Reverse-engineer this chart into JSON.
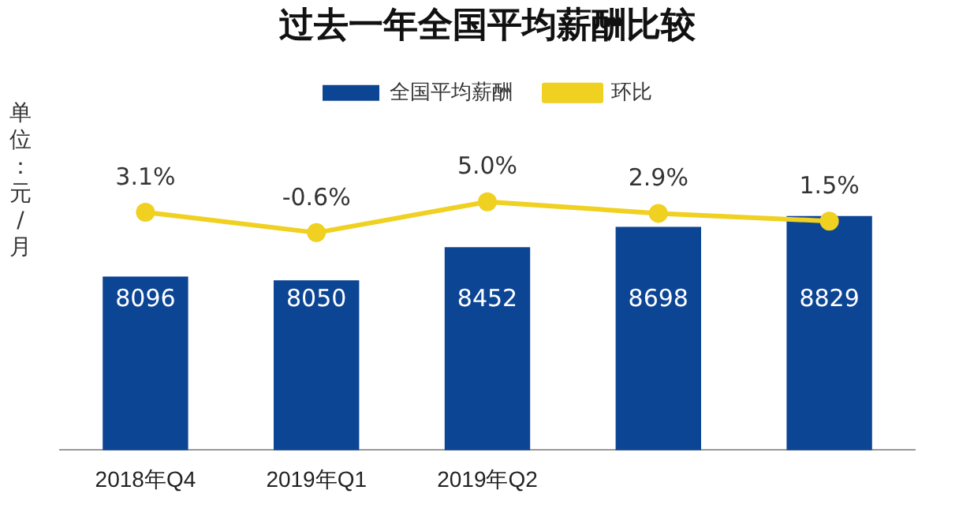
{
  "chart_data": {
    "type": "bar",
    "title": "过去一年全国平均薪酬比较",
    "ylabel": "单位：元/月",
    "categories": [
      "2018年Q4",
      "2019年Q1",
      "2019年Q2",
      null,
      null
    ],
    "series": [
      {
        "name": "全国平均薪酬",
        "color": "#0d4595",
        "values": [
          8096,
          8050,
          8452,
          8698,
          8829
        ]
      },
      {
        "name": "环比",
        "type": "line",
        "axis": "y2",
        "color": "#f0d020",
        "values": [
          3.1,
          -0.6,
          5.0,
          2.9,
          1.5
        ],
        "value_labels": [
          "3.1%",
          "-0.6%",
          "5.0%",
          "2.9%",
          "1.5%"
        ]
      }
    ],
    "tick_labels": "x",
    "data_labels": true,
    "grid": false,
    "legend": "top",
    "marker": "circle"
  }
}
